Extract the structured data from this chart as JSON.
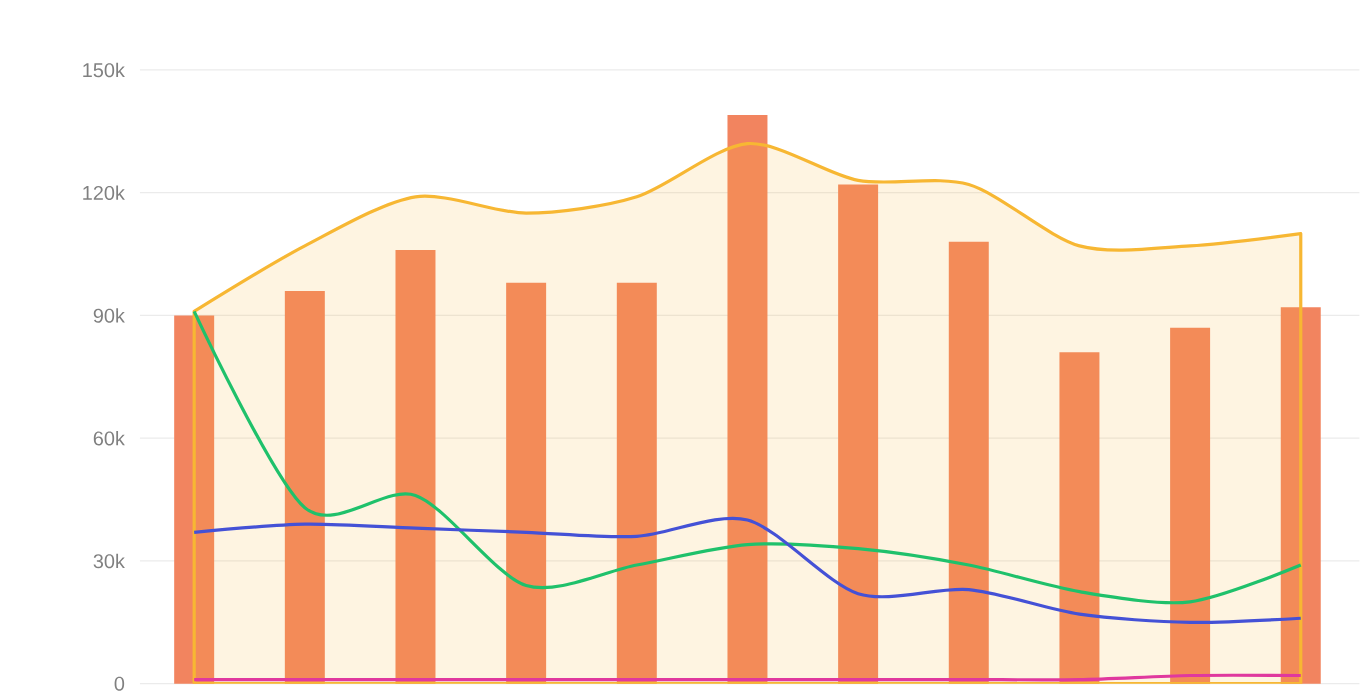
{
  "chart_data": {
    "type": "bar",
    "categories": [
      null,
      null,
      null,
      null,
      null,
      null,
      null,
      null,
      null,
      null,
      null
    ],
    "ylim": [
      0,
      150000
    ],
    "yticks": [
      0,
      {
        "value": 30000,
        "label": "30k"
      },
      {
        "value": 60000,
        "label": "60k"
      },
      {
        "value": 90000,
        "label": "90k"
      },
      {
        "value": 120000,
        "label": "120k"
      },
      {
        "value": 150000,
        "label": "150k"
      }
    ],
    "grid": "y",
    "series": [
      {
        "color": "#f2845f",
        "values": [
          90000,
          96000,
          106000,
          98000,
          98000,
          139000,
          122000,
          108000,
          81000,
          87000,
          92000
        ]
      },
      {
        "type": "area",
        "color": "#f7b733",
        "values": [
          91000,
          107000,
          119000,
          115000,
          119000,
          132000,
          123000,
          122000,
          107000,
          107000,
          110000
        ]
      },
      {
        "type": "line",
        "color": "#1fc16b",
        "values": [
          91000,
          43000,
          46000,
          24000,
          29000,
          34000,
          33000,
          29000,
          22500,
          20000,
          29000
        ]
      },
      {
        "type": "line",
        "color": "#4451d6",
        "values": [
          37000,
          39000,
          38000,
          37000,
          36000,
          40000,
          22000,
          23000,
          17000,
          15000,
          16000
        ]
      },
      {
        "type": "line",
        "color": "#e0389e",
        "values": [
          1000,
          1000,
          1000,
          1000,
          1000,
          1000,
          1000,
          1000,
          1000,
          2000,
          2000
        ]
      }
    ]
  }
}
